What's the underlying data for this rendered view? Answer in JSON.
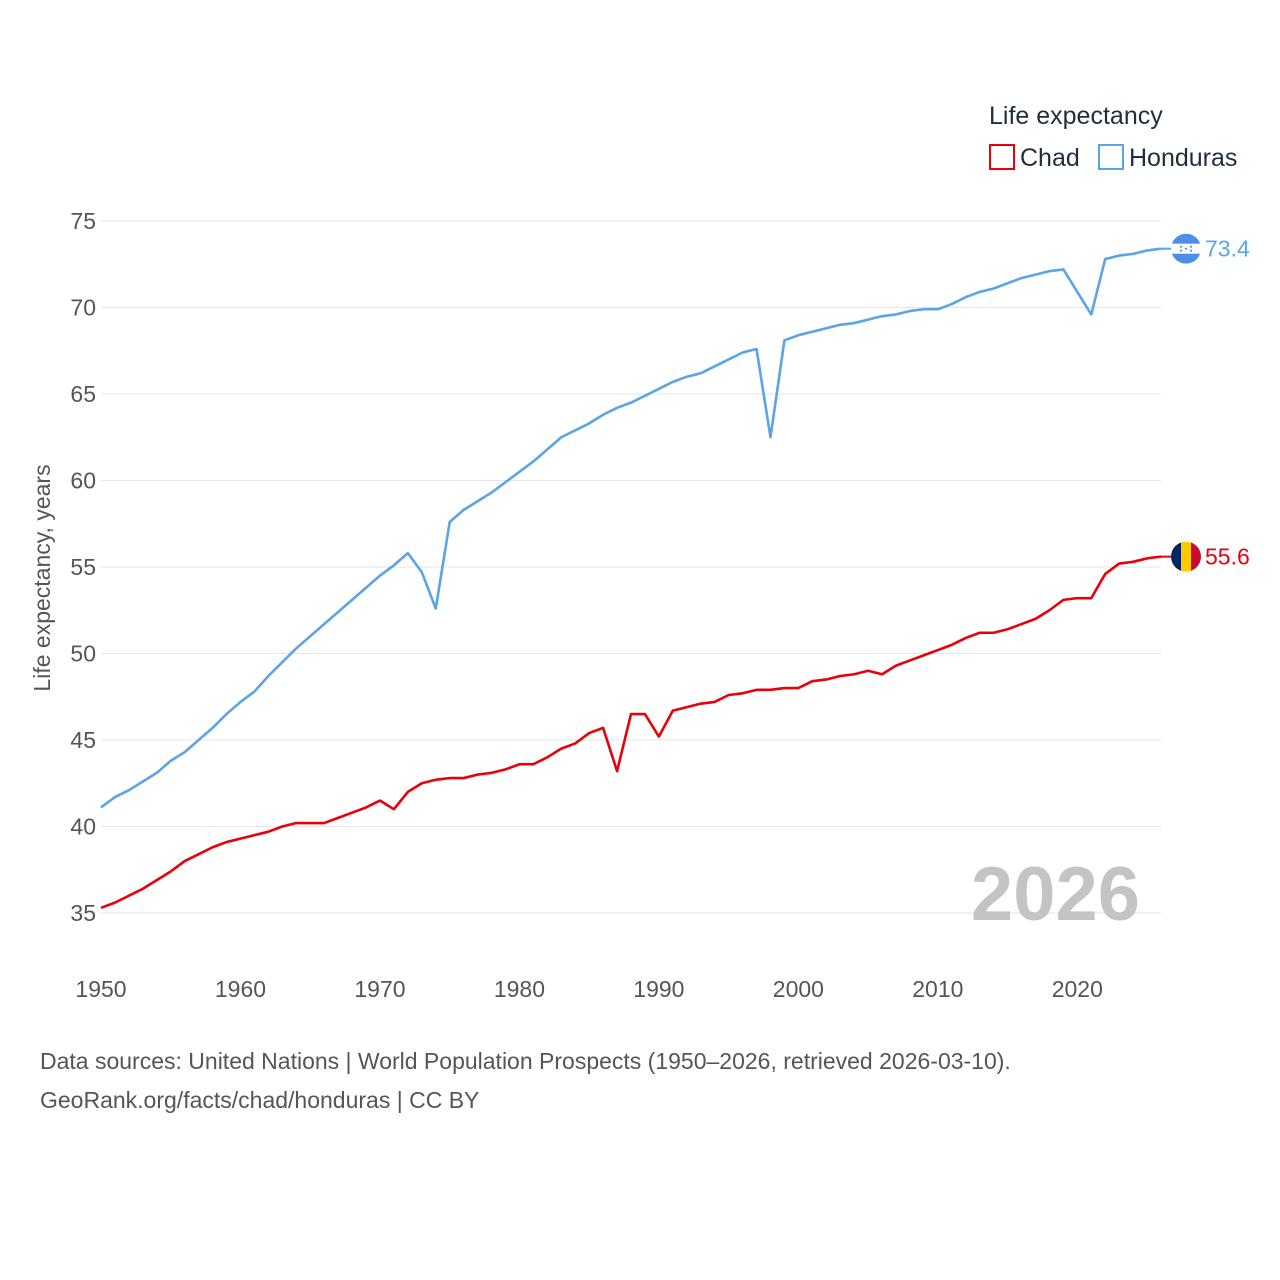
{
  "chart_data": {
    "type": "line",
    "title": "",
    "xlabel": "",
    "ylabel": "Life expectancy, years",
    "xlim": [
      1950,
      2026
    ],
    "ylim": [
      32.5,
      76
    ],
    "x_ticks": [
      "1950",
      "1960",
      "1970",
      "1980",
      "1990",
      "2000",
      "2010",
      "2020"
    ],
    "y_ticks": [
      "35",
      "40",
      "45",
      "50",
      "55",
      "60",
      "65",
      "70",
      "75"
    ],
    "legend": {
      "title": "Life expectancy",
      "placement": "top-right"
    },
    "year_label": "2026",
    "x": [
      1950,
      1951,
      1952,
      1953,
      1954,
      1955,
      1956,
      1957,
      1958,
      1959,
      1960,
      1961,
      1962,
      1963,
      1964,
      1965,
      1966,
      1967,
      1968,
      1969,
      1970,
      1971,
      1972,
      1973,
      1974,
      1975,
      1976,
      1977,
      1978,
      1979,
      1980,
      1981,
      1982,
      1983,
      1984,
      1985,
      1986,
      1987,
      1988,
      1989,
      1990,
      1991,
      1992,
      1993,
      1994,
      1995,
      1996,
      1997,
      1998,
      1999,
      2000,
      2001,
      2002,
      2003,
      2004,
      2005,
      2006,
      2007,
      2008,
      2009,
      2010,
      2011,
      2012,
      2013,
      2014,
      2015,
      2016,
      2017,
      2018,
      2019,
      2020,
      2021,
      2022,
      2023,
      2024,
      2025,
      2026
    ],
    "series": [
      {
        "name": "Chad",
        "color": "#e8000b",
        "end_label": "55.6",
        "values": [
          35.3,
          35.6,
          36.0,
          36.4,
          36.9,
          37.4,
          38.0,
          38.4,
          38.8,
          39.1,
          39.3,
          39.5,
          39.7,
          40.0,
          40.2,
          40.2,
          40.2,
          40.5,
          40.8,
          41.1,
          41.5,
          41.0,
          42.0,
          42.5,
          42.7,
          42.8,
          42.8,
          43.0,
          43.1,
          43.3,
          43.6,
          43.6,
          44.0,
          44.5,
          44.8,
          45.4,
          45.7,
          43.2,
          46.5,
          46.5,
          45.2,
          46.7,
          46.9,
          47.1,
          47.2,
          47.6,
          47.7,
          47.9,
          47.9,
          48.0,
          48.0,
          48.4,
          48.5,
          48.7,
          48.8,
          49.0,
          48.8,
          49.3,
          49.6,
          49.9,
          50.2,
          50.5,
          50.9,
          51.2,
          51.2,
          51.4,
          51.7,
          52.0,
          52.5,
          53.1,
          53.2,
          53.2,
          54.6,
          55.2,
          55.3,
          55.5,
          55.6
        ]
      },
      {
        "name": "Honduras",
        "color": "#5ba4e5",
        "end_label": "73.4",
        "values": [
          41.1,
          41.7,
          42.1,
          42.6,
          43.1,
          43.8,
          44.3,
          45.0,
          45.7,
          46.5,
          47.2,
          47.8,
          48.7,
          49.5,
          50.3,
          51.0,
          51.7,
          52.4,
          53.1,
          53.8,
          54.5,
          55.1,
          55.8,
          54.7,
          52.6,
          57.6,
          58.3,
          58.8,
          59.3,
          59.9,
          60.5,
          61.1,
          61.8,
          62.5,
          62.9,
          63.3,
          63.8,
          64.2,
          64.5,
          64.9,
          65.3,
          65.7,
          66.0,
          66.2,
          66.6,
          67.0,
          67.4,
          67.6,
          62.5,
          68.1,
          68.4,
          68.6,
          68.8,
          69.0,
          69.1,
          69.3,
          69.5,
          69.6,
          69.8,
          69.9,
          69.9,
          70.2,
          70.6,
          70.9,
          71.1,
          71.4,
          71.7,
          71.9,
          72.1,
          72.2,
          70.9,
          69.6,
          72.8,
          73.0,
          73.1,
          73.3,
          73.4
        ]
      }
    ]
  },
  "source": {
    "line1": "Data sources: United Nations | World Population Prospects (1950–2026, retrieved 2026-03-10).",
    "line2": "GeoRank.org/facts/chad/honduras | CC BY"
  },
  "flags": {
    "chad": [
      "#002664",
      "#fecb00",
      "#c60c30"
    ],
    "honduras": [
      "#4b8fe8",
      "#ffffff",
      "#4b8fe8"
    ]
  }
}
